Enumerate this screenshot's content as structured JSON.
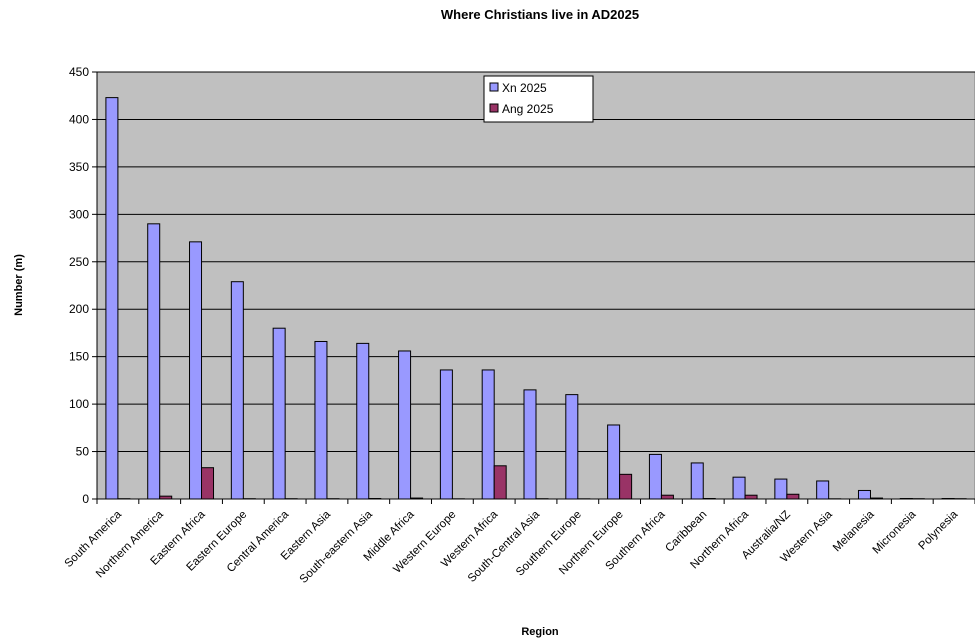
{
  "chart_data": {
    "type": "bar",
    "title": "Where Christians live in AD2025",
    "xlabel": "Region",
    "ylabel": "Number (m)",
    "ylim": [
      0,
      450
    ],
    "yticks": [
      0,
      50,
      100,
      150,
      200,
      250,
      300,
      350,
      400,
      450
    ],
    "grid": true,
    "legend_position": "top-center",
    "plot_background": "#c0c0c0",
    "categories": [
      "South America",
      "Northern America",
      "Eastern Africa",
      "Eastern Europe",
      "Central America",
      "Eastern Asia",
      "South-eastern Asia",
      "Middle Africa",
      "Western Europe",
      "Western Africa",
      "South-Central Asia",
      "Southern Europe",
      "Northern Europe",
      "Southern Africa",
      "Caribbean",
      "Northern Africa",
      "Australia/NZ",
      "Western Asia",
      "Melanesia",
      "Micronesia",
      "Polynesia"
    ],
    "series": [
      {
        "name": "Xn 2025",
        "color": "#9999ff",
        "values": [
          423,
          290,
          271,
          229,
          180,
          166,
          164,
          156,
          136,
          136,
          115,
          110,
          78,
          47,
          38,
          23,
          21,
          19,
          9,
          0.5,
          0.5
        ]
      },
      {
        "name": "Ang 2025",
        "color": "#993366",
        "values": [
          0.3,
          3,
          33,
          0.3,
          0.3,
          0.3,
          0.5,
          1,
          0.2,
          35,
          0.3,
          0.2,
          26,
          4,
          0.5,
          4,
          5,
          0.2,
          1,
          0.3,
          0.3
        ]
      }
    ]
  }
}
